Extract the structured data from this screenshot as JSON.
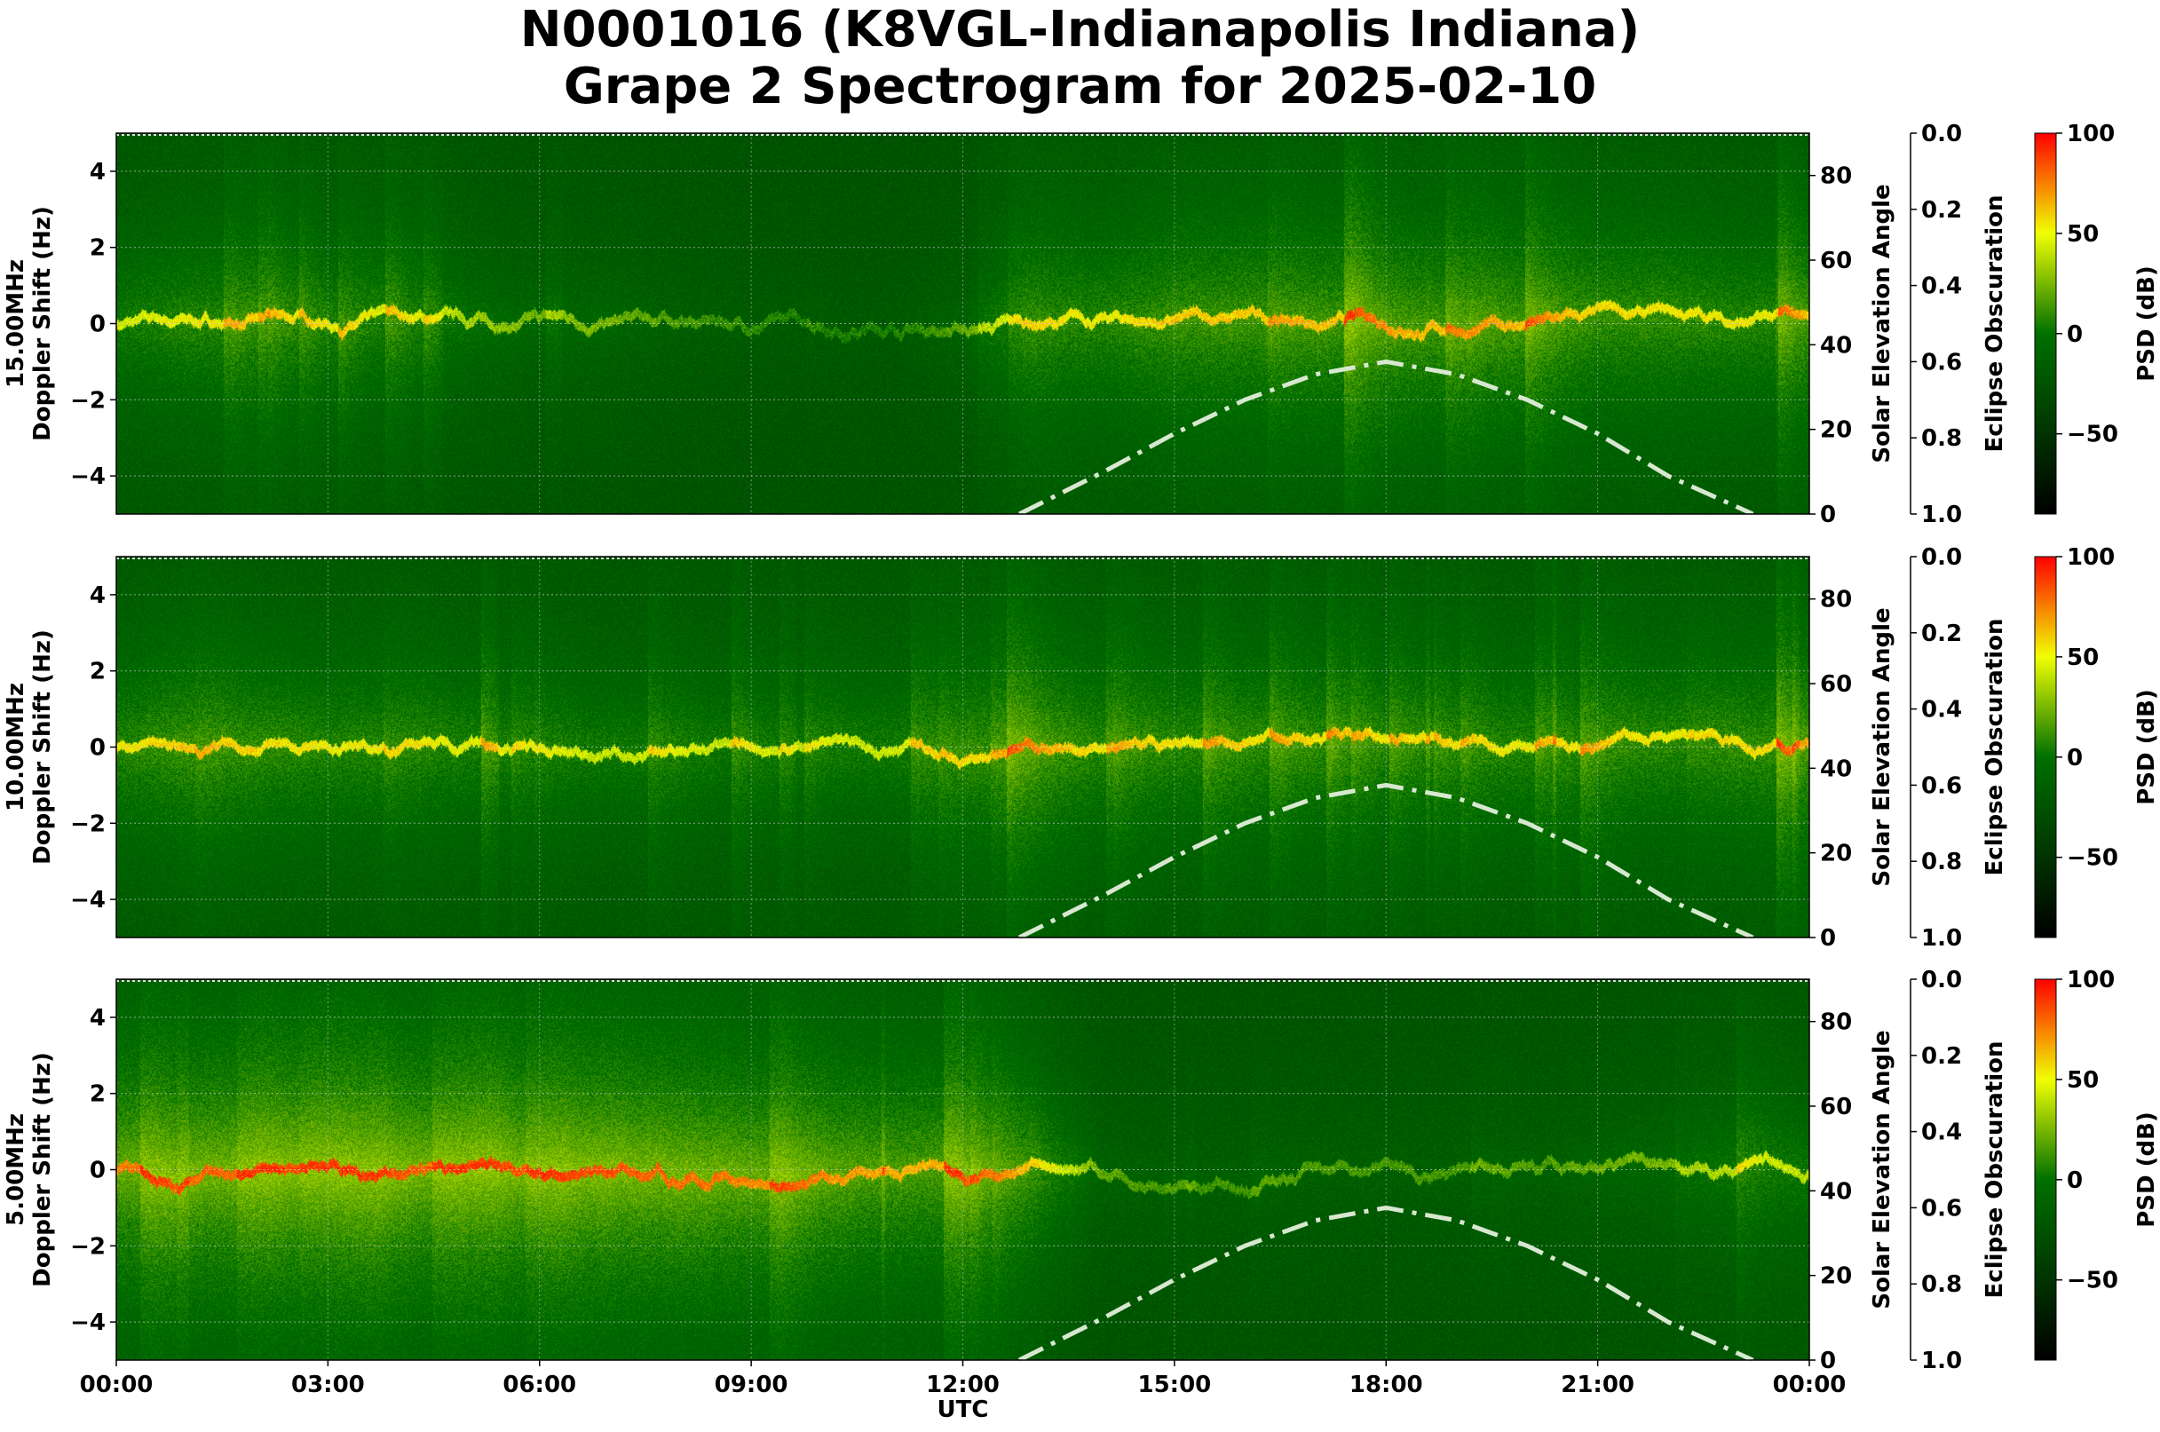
{
  "title": {
    "line1": "N0001016 (K8VGL-Indianapolis Indiana)",
    "line2": "Grape 2 Spectrogram for 2025-02-10"
  },
  "chart_data": [
    {
      "type": "heatmap",
      "panel_label": "15.00MHz",
      "ylabel": "Doppler Shift (Hz)",
      "ylabel2": "Solar Elevation Angle",
      "ylabel3": "Eclipse Obscuration",
      "colorbar_label": "PSD (dB)",
      "xlabel": "",
      "relative_activity_by_hour": [
        0.5,
        0.6,
        0.6,
        0.5,
        0.5,
        0.4,
        0.3,
        0.3,
        0.2,
        0.15,
        0.1,
        0.1,
        0.25,
        0.6,
        0.6,
        0.7,
        0.7,
        0.7,
        0.7,
        0.7,
        0.7,
        0.65,
        0.65,
        0.6
      ]
    },
    {
      "type": "heatmap",
      "panel_label": "10.00MHz",
      "ylabel": "Doppler Shift (Hz)",
      "ylabel2": "Solar Elevation Angle",
      "ylabel3": "Eclipse Obscuration",
      "colorbar_label": "PSD (dB)",
      "xlabel": "",
      "relative_activity_by_hour": [
        0.6,
        0.7,
        0.65,
        0.6,
        0.6,
        0.55,
        0.5,
        0.5,
        0.5,
        0.45,
        0.45,
        0.5,
        0.6,
        0.7,
        0.6,
        0.6,
        0.6,
        0.6,
        0.55,
        0.55,
        0.55,
        0.6,
        0.6,
        0.65
      ]
    },
    {
      "type": "heatmap",
      "panel_label": "5.00MHz",
      "ylabel": "Doppler Shift (Hz)",
      "ylabel2": "Solar Elevation Angle",
      "ylabel3": "Eclipse Obscuration",
      "colorbar_label": "PSD (dB)",
      "xlabel": "UTC",
      "relative_activity_by_hour": [
        0.85,
        0.9,
        0.9,
        0.9,
        0.9,
        0.85,
        0.85,
        0.9,
        0.9,
        0.85,
        0.8,
        0.75,
        0.75,
        0.65,
        0.25,
        0.2,
        0.2,
        0.2,
        0.2,
        0.2,
        0.2,
        0.25,
        0.3,
        0.45
      ]
    }
  ],
  "axes": {
    "x_ticks": [
      "00:00",
      "03:00",
      "06:00",
      "09:00",
      "12:00",
      "15:00",
      "18:00",
      "21:00",
      "00:00"
    ],
    "x_range_hours": [
      0,
      24
    ],
    "y_range": [
      -5,
      5
    ],
    "y_ticks": [
      "4",
      "2",
      "0",
      "−2",
      "−4"
    ],
    "y_tick_values": [
      4,
      2,
      0,
      -2,
      -4
    ],
    "y2_range": [
      0,
      90
    ],
    "y2_ticks": [
      "0",
      "20",
      "40",
      "60",
      "80"
    ],
    "y2_tick_values": [
      0,
      20,
      40,
      60,
      80
    ],
    "y3_range": [
      0.0,
      1.0
    ],
    "y3_inverted": true,
    "y3_ticks": [
      "0.0",
      "0.2",
      "0.4",
      "0.6",
      "0.8",
      "1.0"
    ],
    "y3_tick_values": [
      0,
      0.2,
      0.4,
      0.6,
      0.8,
      1.0
    ],
    "colorbar_range": [
      -90,
      100
    ],
    "colorbar_ticks": [
      "100",
      "50",
      "0",
      "−50"
    ],
    "colorbar_tick_values": [
      100,
      50,
      0,
      -50
    ],
    "grid": true
  },
  "solar_elevation": {
    "hours": [
      12.8,
      14,
      15,
      16,
      17,
      18,
      19,
      20,
      21,
      22,
      23.2
    ],
    "degrees": [
      0,
      10,
      19,
      27,
      33,
      36,
      33,
      27,
      19,
      9,
      0
    ],
    "style": "dash-dot",
    "color": "#d8e8d0"
  },
  "colors": {
    "colormap": [
      "#000000",
      "#004d00",
      "#007000",
      "#f0ff00",
      "#ff0000"
    ],
    "colormap_stops_db": [
      -90,
      -30,
      0,
      50,
      100
    ]
  }
}
